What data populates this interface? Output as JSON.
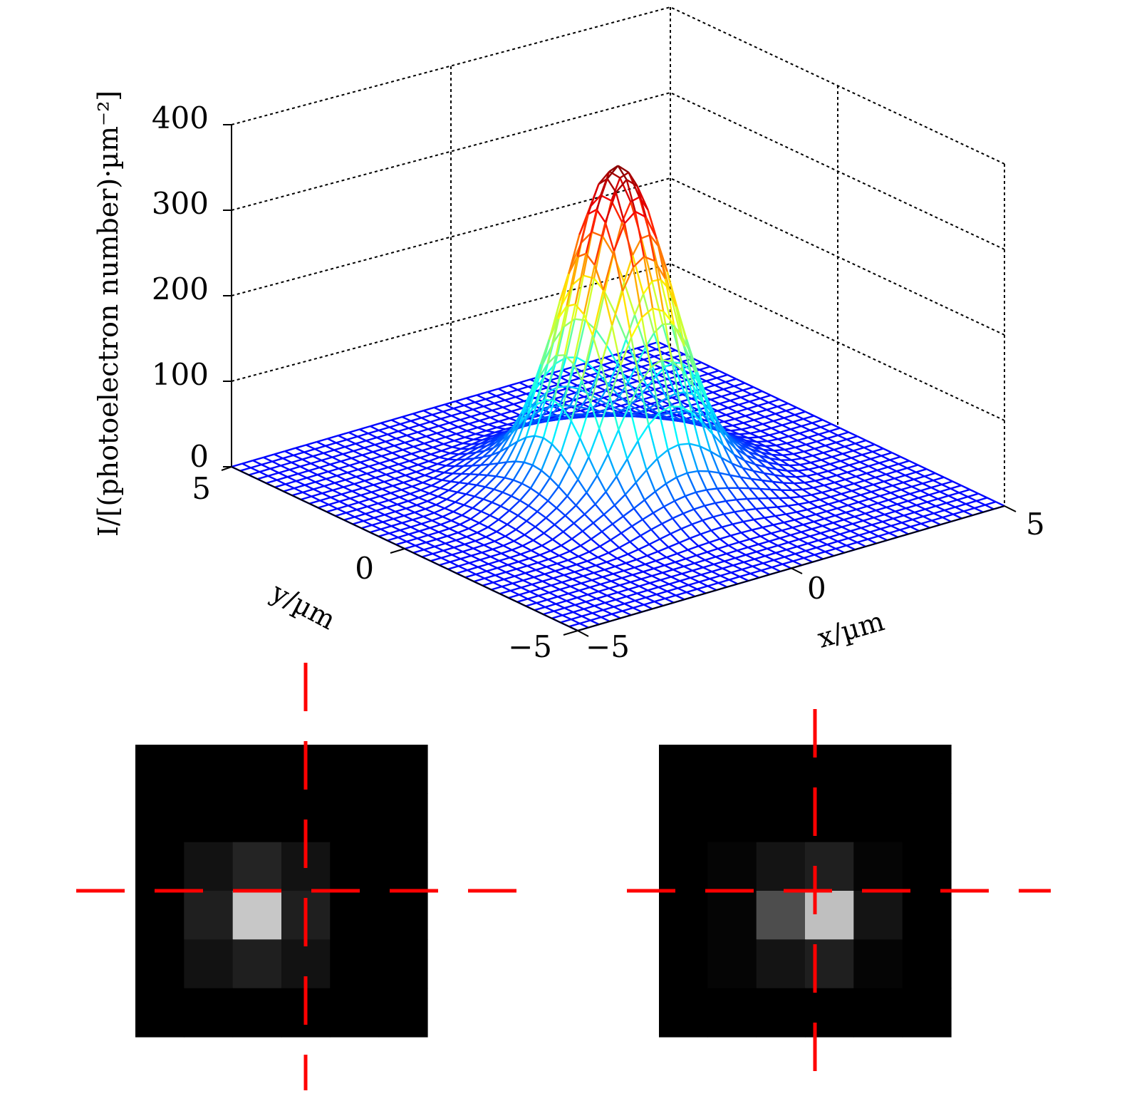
{
  "chart_data": [
    {
      "type": "surface",
      "title": "",
      "xlabel": "x/µm",
      "ylabel": "y/µm",
      "zlabel": "I/[(photoelectron number)·µm⁻²]",
      "x_range": [
        -5,
        5
      ],
      "y_range": [
        -5,
        5
      ],
      "z_range": [
        0,
        400
      ],
      "x_ticks": [
        "−5",
        "0",
        "5"
      ],
      "y_ticks": [
        "−5",
        "0",
        "5"
      ],
      "z_ticks": [
        "0",
        "100",
        "200",
        "300",
        "400"
      ],
      "grid": true,
      "colormap": "jet",
      "peak": {
        "x": 0,
        "y": 0,
        "z": 375
      },
      "profile": "Airy-like central peak with faint ring near r ≈ 2.5 µm",
      "grid_resolution": 41
    },
    {
      "type": "heatmap",
      "description": "pixelated spot, crosshair centered",
      "colormap": "gray",
      "crosshair_color": "#ff0000",
      "rows": 6,
      "cols": 6,
      "values": [
        [
          0.0,
          0.0,
          0.0,
          0.0,
          0.0,
          0.0
        ],
        [
          0.0,
          0.0,
          0.0,
          0.0,
          0.0,
          0.0
        ],
        [
          0.0,
          0.07,
          0.14,
          0.07,
          0.0,
          0.0
        ],
        [
          0.0,
          0.12,
          0.78,
          0.12,
          0.0,
          0.0
        ],
        [
          0.0,
          0.07,
          0.12,
          0.07,
          0.0,
          0.0
        ],
        [
          0.0,
          0.0,
          0.0,
          0.0,
          0.0,
          0.0
        ]
      ]
    },
    {
      "type": "heatmap",
      "description": "pixelated spot, crosshair offset",
      "colormap": "gray",
      "crosshair_color": "#ff0000",
      "rows": 6,
      "cols": 6,
      "values": [
        [
          0.0,
          0.0,
          0.0,
          0.0,
          0.0,
          0.0
        ],
        [
          0.0,
          0.0,
          0.0,
          0.0,
          0.0,
          0.0
        ],
        [
          0.0,
          0.02,
          0.08,
          0.12,
          0.02,
          0.0
        ],
        [
          0.0,
          0.02,
          0.3,
          0.75,
          0.08,
          0.0
        ],
        [
          0.0,
          0.02,
          0.08,
          0.12,
          0.02,
          0.0
        ],
        [
          0.0,
          0.0,
          0.0,
          0.0,
          0.0,
          0.0
        ]
      ]
    }
  ]
}
